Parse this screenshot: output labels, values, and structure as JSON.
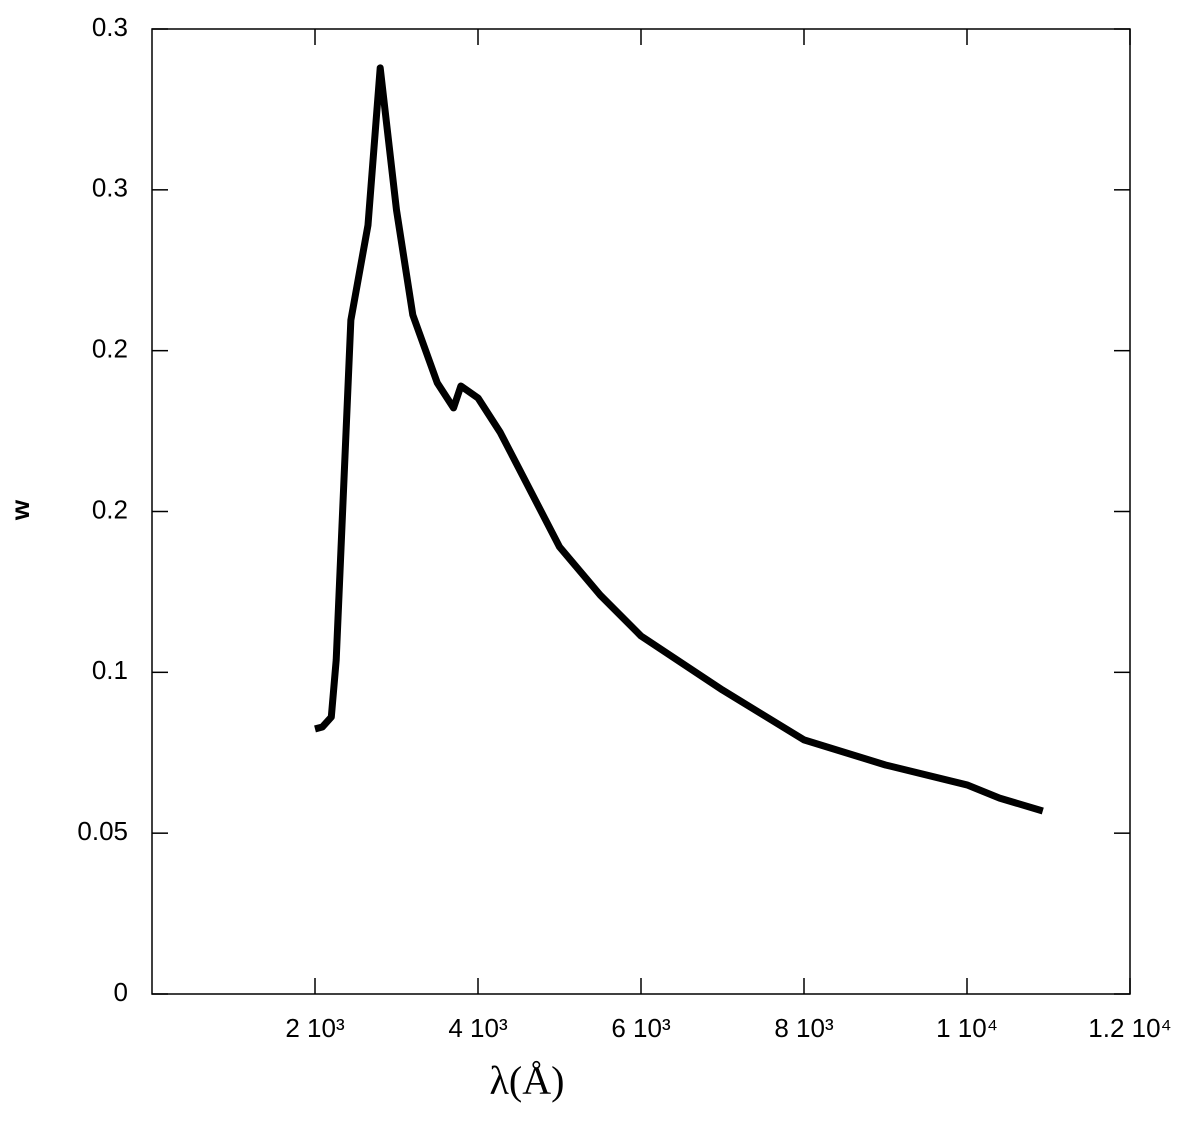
{
  "chart_data": {
    "type": "line",
    "xlabel": "λ(Å)",
    "ylabel": "w",
    "x": [
      2000,
      2090,
      2200,
      2260,
      2440,
      2650,
      2800,
      3000,
      3200,
      3500,
      3700,
      3790,
      4000,
      4270,
      4500,
      5000,
      5500,
      6000,
      7000,
      8000,
      9000,
      10000,
      10400,
      10930
    ],
    "series": [
      {
        "color": "#000000",
        "values": [
          0.0824,
          0.083,
          0.0861,
          0.1038,
          0.2095,
          0.239,
          0.2879,
          0.2437,
          0.2111,
          0.19,
          0.1822,
          0.189,
          0.1853,
          0.1747,
          0.1635,
          0.139,
          0.124,
          0.1113,
          0.0945,
          0.079,
          0.0712,
          0.065,
          0.0609,
          0.0569
        ]
      }
    ],
    "xlim": [
      0,
      12000
    ],
    "xticks": [
      {
        "value": 2000,
        "label": "2 10³"
      },
      {
        "value": 4000,
        "label": "4 10³"
      },
      {
        "value": 6000,
        "label": "6 10³"
      },
      {
        "value": 8000,
        "label": "8 10³"
      },
      {
        "value": 10000,
        "label": "1 10⁴"
      },
      {
        "value": 12000,
        "label": "1.2 10⁴"
      }
    ],
    "ylim": [
      0,
      0.3
    ],
    "yticks": [
      0,
      0.05,
      0.1,
      {
        "value": 0.15,
        "label": "0.2"
      },
      0.2,
      {
        "value": 0.25,
        "label": "0.3"
      },
      0.3
    ]
  }
}
